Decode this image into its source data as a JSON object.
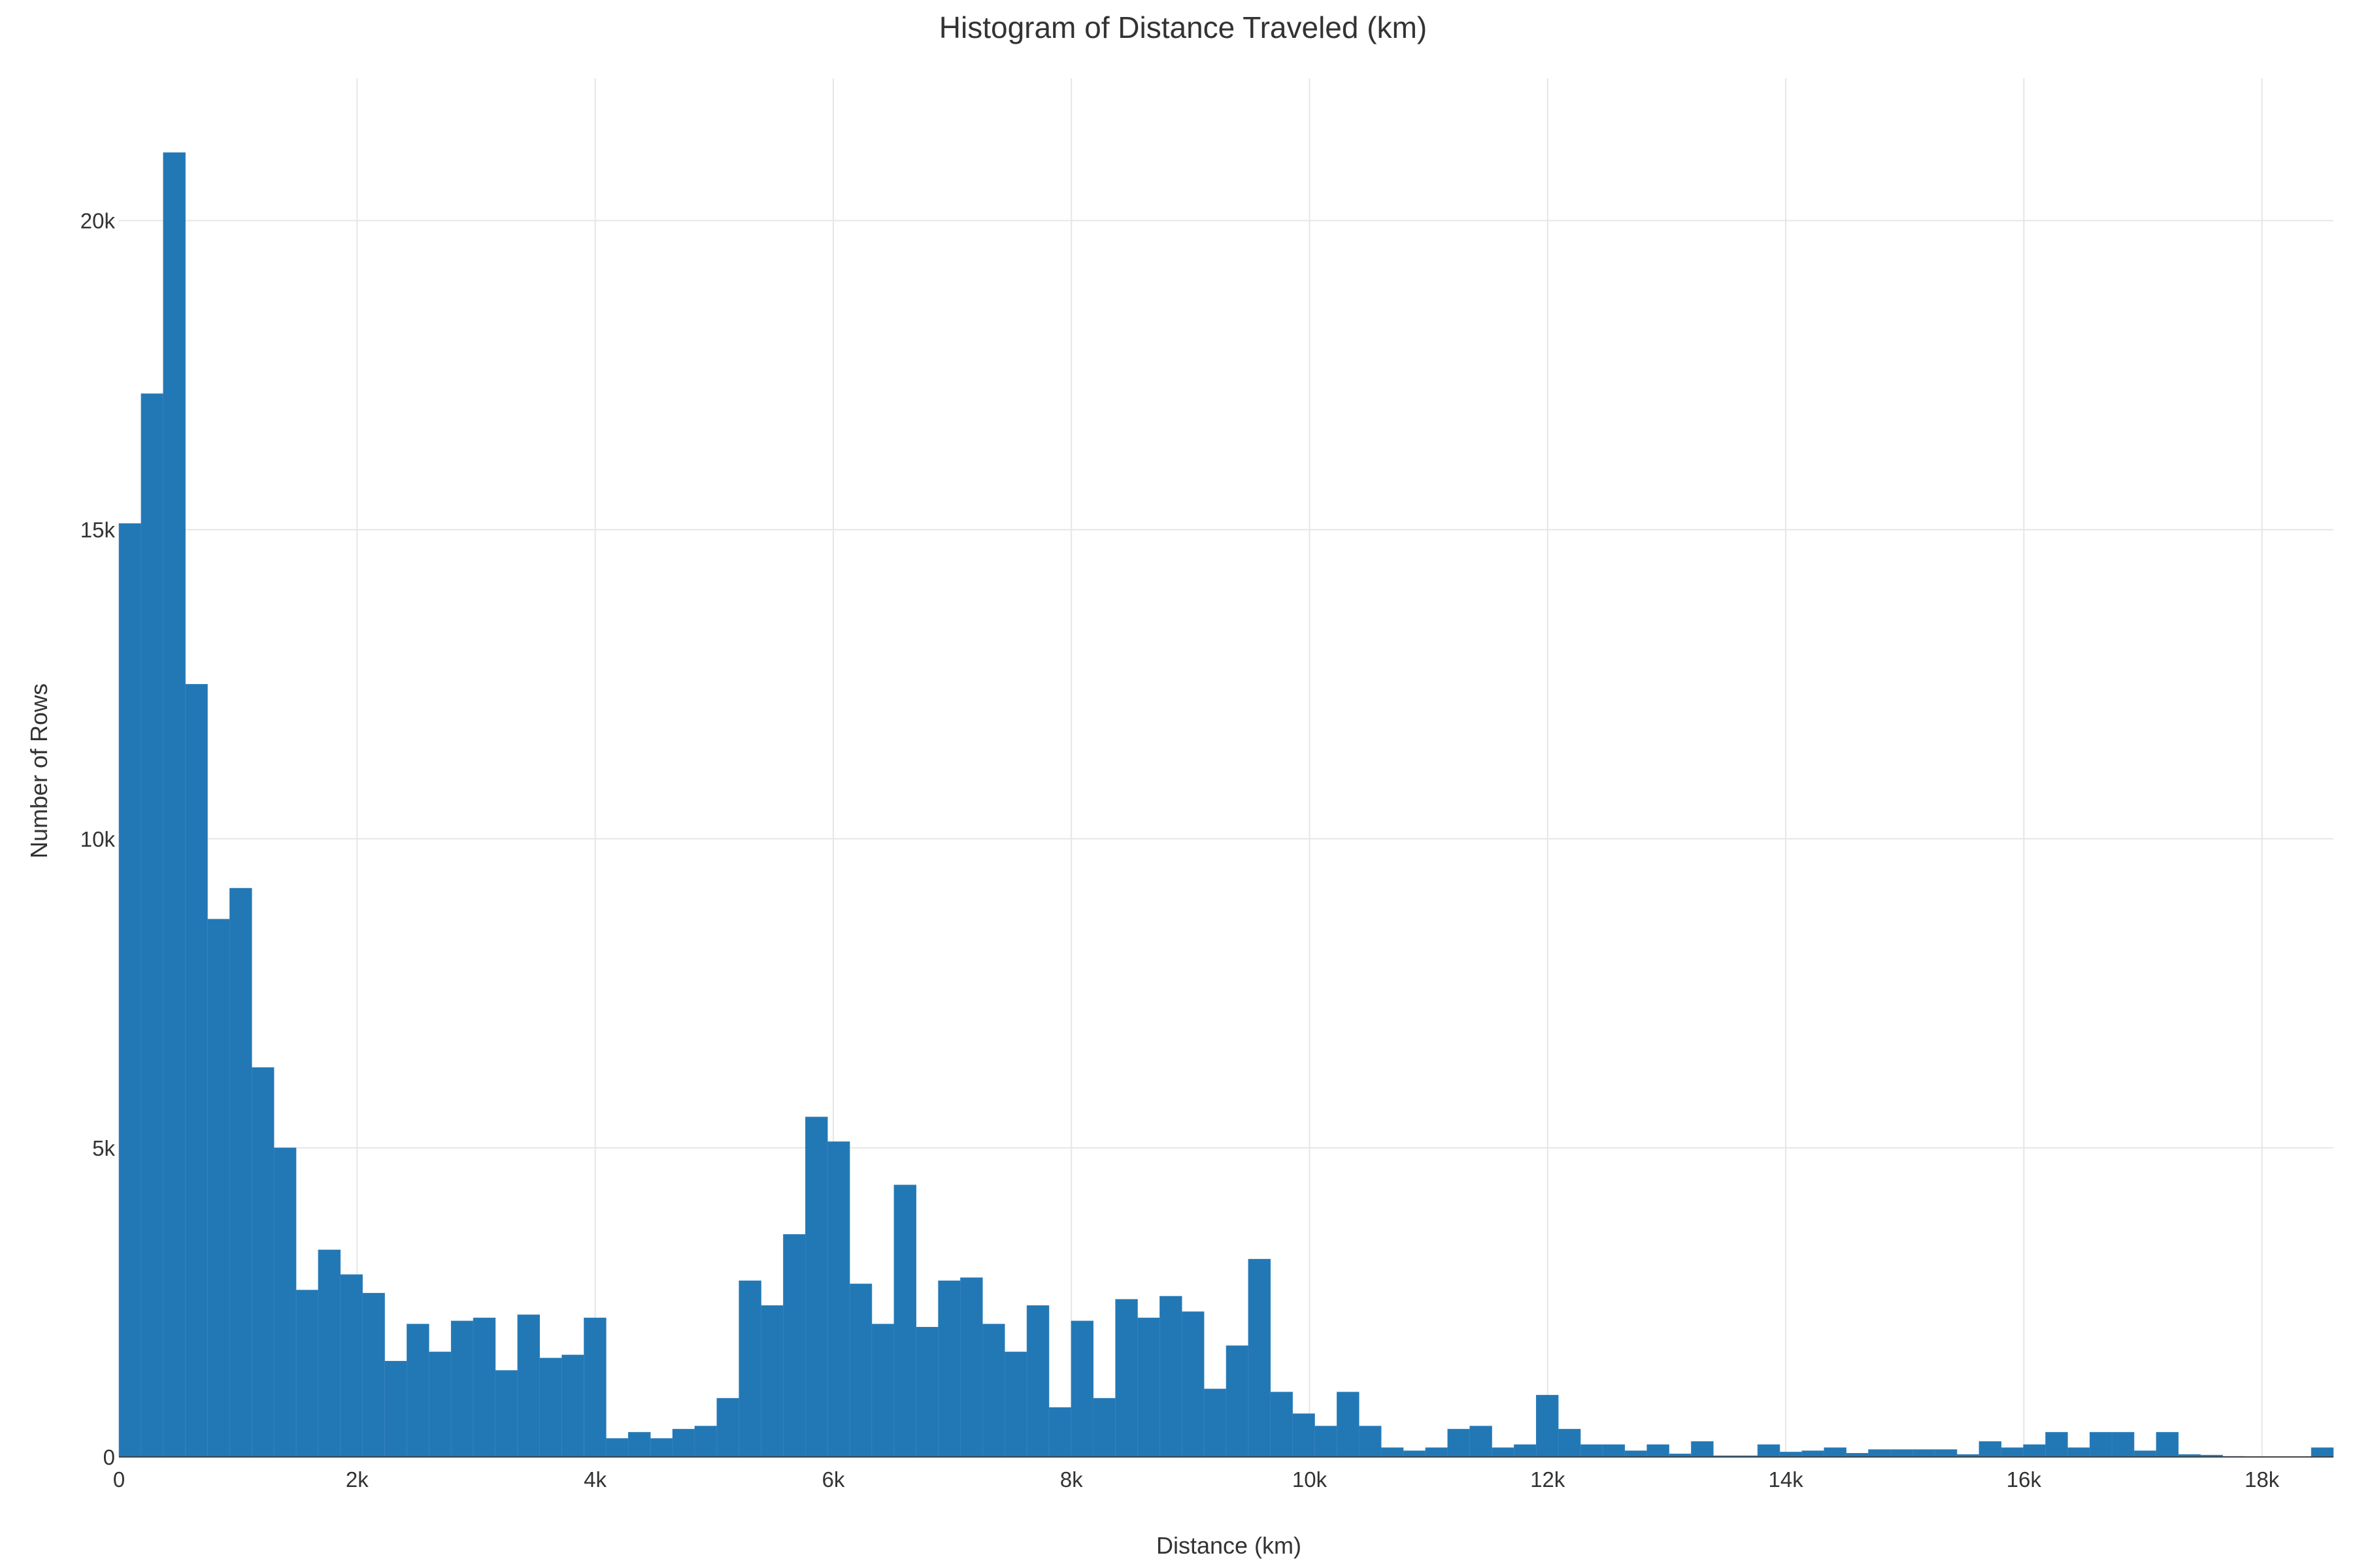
{
  "chart_data": {
    "type": "bar",
    "title": "Histogram of Distance Traveled (km)",
    "xlabel": "Distance (km)",
    "ylabel": "Number of Rows",
    "xlim": [
      0,
      18600
    ],
    "ylim": [
      0,
      22300
    ],
    "bin_width": 186,
    "x_ticks": [
      {
        "value": 0,
        "label": "0"
      },
      {
        "value": 2000,
        "label": "2k"
      },
      {
        "value": 4000,
        "label": "4k"
      },
      {
        "value": 6000,
        "label": "6k"
      },
      {
        "value": 8000,
        "label": "8k"
      },
      {
        "value": 10000,
        "label": "10k"
      },
      {
        "value": 12000,
        "label": "12k"
      },
      {
        "value": 14000,
        "label": "14k"
      },
      {
        "value": 16000,
        "label": "16k"
      },
      {
        "value": 18000,
        "label": "18k"
      }
    ],
    "y_ticks": [
      {
        "value": 0,
        "label": "0"
      },
      {
        "value": 5000,
        "label": "5k"
      },
      {
        "value": 10000,
        "label": "10k"
      },
      {
        "value": 15000,
        "label": "15k"
      },
      {
        "value": 20000,
        "label": "20k"
      }
    ],
    "grid": true,
    "legend": "none",
    "bar_color": "#2278b5",
    "values": [
      15100,
      17200,
      21100,
      12500,
      8700,
      9200,
      6300,
      5000,
      2700,
      3350,
      2950,
      2650,
      1550,
      2150,
      1700,
      2200,
      2250,
      1400,
      2300,
      1600,
      1650,
      2250,
      300,
      400,
      300,
      450,
      500,
      950,
      2850,
      2450,
      3600,
      5500,
      5100,
      2800,
      2150,
      4400,
      2100,
      2850,
      2900,
      2150,
      1700,
      2450,
      800,
      2200,
      950,
      2550,
      2250,
      2600,
      2350,
      1100,
      1800,
      3200,
      1050,
      700,
      500,
      1050,
      500,
      150,
      100,
      150,
      450,
      500,
      150,
      200,
      1000,
      450,
      200,
      200,
      100,
      200,
      50,
      250,
      20,
      20,
      200,
      80,
      100,
      150,
      60,
      120,
      120,
      120,
      120,
      40,
      250,
      150,
      200,
      400,
      150,
      400,
      400,
      100,
      400,
      40,
      30,
      10,
      0,
      0,
      0,
      150
    ]
  }
}
